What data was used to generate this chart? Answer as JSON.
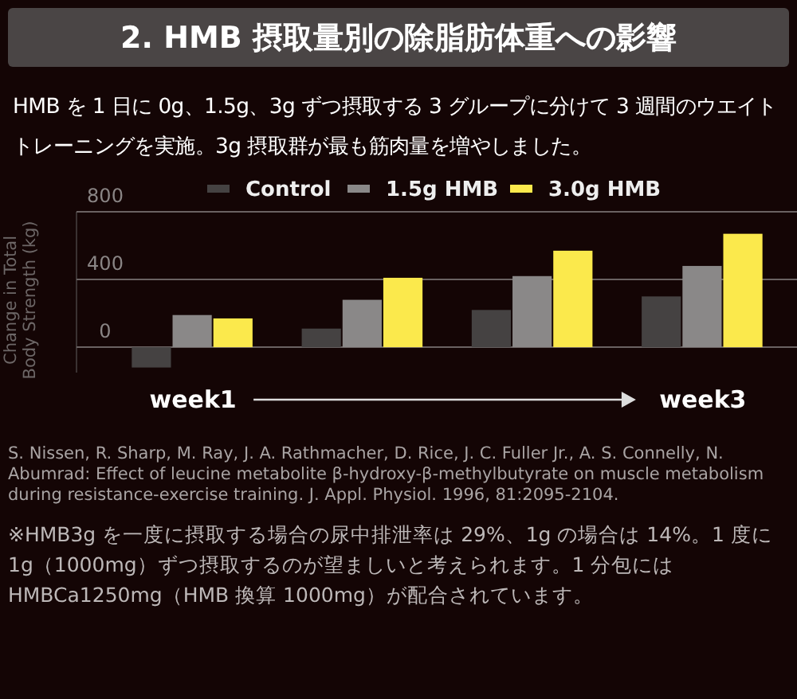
{
  "chart_data": {
    "type": "bar",
    "title": "2. HMB 摂取量別の除脂肪体重への影響",
    "subtitle": "HMB を 1 日に 0g、1.5g、3g ずつ摂取する 3 グループに分けて 3 週間のウエイトトレーニングを実施。3g 摂取群が最も筋肉量を増やしました。",
    "ylabel": "Change in Total Body Strength (kg)",
    "categories": [
      "week1",
      null,
      null,
      "week3"
    ],
    "series": [
      {
        "name": "Control",
        "color": "#454242",
        "values": [
          -120,
          110,
          220,
          300
        ]
      },
      {
        "name": "1.5g HMB",
        "color": "#8a8888",
        "values": [
          190,
          280,
          420,
          480
        ]
      },
      {
        "name": "3.0g HMB",
        "color": "#fbe94c",
        "values": [
          170,
          410,
          570,
          670
        ]
      }
    ],
    "ylim": [
      -150,
      800
    ],
    "yticks": [
      0,
      400,
      800
    ],
    "grid": "y",
    "legend": "top",
    "annotations": [
      "S. Nissen, R. Sharp, M. Ray, J. A. Rathmacher, D. Rice, J. C. Fuller Jr., A. S. Connelly, N. Abumrad: Effect of leucine metabolite β-hydroxy-β-methylbutyrate on muscle metabolism during resistance-exercise training. J. Appl. Physiol. 1996, 81:2095-2104.",
      "※HMB3g を一度に摂取する場合の尿中排泄率は 29%、1g の場合は 14%。1 度に 1g（1000mg）ずつ摂取するのが望ましいと考えられます。1 分包には HMBCa1250mg（HMB 換算 1000mg）が配合されています。"
    ]
  }
}
